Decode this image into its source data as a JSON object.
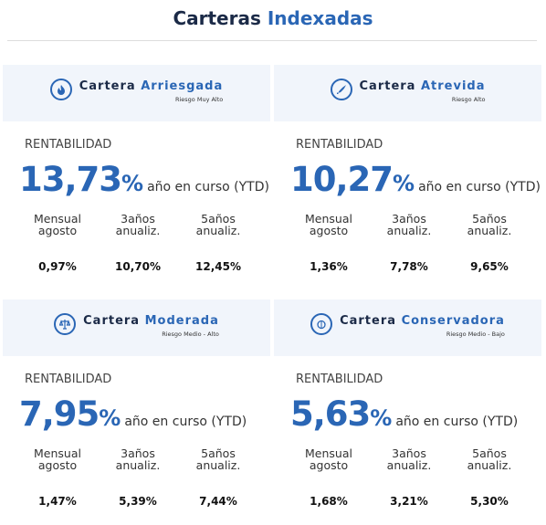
{
  "header": {
    "title_a": "Carteras",
    "title_b": "Indexadas"
  },
  "cards": [
    {
      "name_a": "Cartera",
      "name_b": "Arriesgada",
      "risk": "Riesgo Muy Alto",
      "label": "RENTABILIDAD",
      "ytd_value": "13,73",
      "ytd_unit": "%",
      "ytd_text": "año en curso (YTD)",
      "stats": [
        {
          "label_1": "Mensual",
          "label_2": "agosto",
          "value": "0,97%"
        },
        {
          "label_1": "3años",
          "label_2": "anualiz.",
          "value": "10,70%"
        },
        {
          "label_1": "5años",
          "label_2": "anualiz.",
          "value": "12,45%"
        }
      ]
    },
    {
      "name_a": "Cartera",
      "name_b": "Atrevida",
      "risk": "Riesgo Alto",
      "label": "RENTABILIDAD",
      "ytd_value": "10,27",
      "ytd_unit": "%",
      "ytd_text": "año en curso (YTD)",
      "stats": [
        {
          "label_1": "Mensual",
          "label_2": "agosto",
          "value": "1,36%"
        },
        {
          "label_1": "3años",
          "label_2": "anualiz.",
          "value": "7,78%"
        },
        {
          "label_1": "5años",
          "label_2": "anualiz.",
          "value": "9,65%"
        }
      ]
    },
    {
      "name_a": "Cartera",
      "name_b": "Moderada",
      "risk": "Riesgo Medio - Alto",
      "label": "RENTABILIDAD",
      "ytd_value": "7,95",
      "ytd_unit": "%",
      "ytd_text": "año en curso (YTD)",
      "stats": [
        {
          "label_1": "Mensual",
          "label_2": "agosto",
          "value": "1,47%"
        },
        {
          "label_1": "3años",
          "label_2": "anualiz.",
          "value": "5,39%"
        },
        {
          "label_1": "5años",
          "label_2": "anualiz.",
          "value": "7,44%"
        }
      ]
    },
    {
      "name_a": "Cartera",
      "name_b": "Conservadora",
      "risk": "Riesgo Medio - Bajo",
      "label": "RENTABILIDAD",
      "ytd_value": "5,63",
      "ytd_unit": "%",
      "ytd_text": "año en curso (YTD)",
      "stats": [
        {
          "label_1": "Mensual",
          "label_2": "agosto",
          "value": "1,68%"
        },
        {
          "label_1": "3años",
          "label_2": "anualiz.",
          "value": "3,21%"
        },
        {
          "label_1": "5años",
          "label_2": "anualiz.",
          "value": "5,30%"
        }
      ]
    }
  ]
}
